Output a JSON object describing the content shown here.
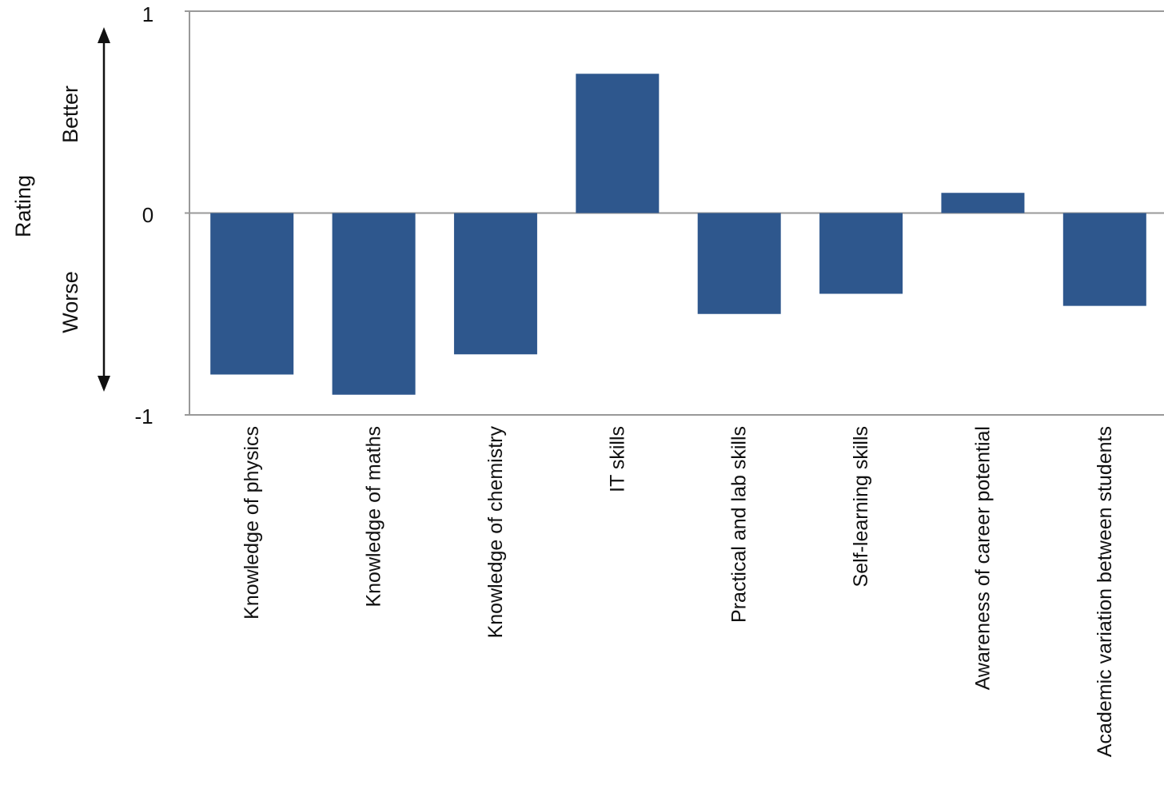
{
  "chart_data": {
    "type": "bar",
    "categories": [
      "Knowledge of physics",
      "Knowledge of maths",
      "Knowledge of chemistry",
      "IT skills",
      "Practical and lab skills",
      "Self-learning skills",
      "Awareness of career potential",
      "Academic variation between students"
    ],
    "values": [
      -0.8,
      -0.9,
      -0.7,
      0.69,
      -0.5,
      -0.4,
      0.1,
      -0.46
    ],
    "ylim": [
      -1,
      1
    ],
    "yticks": [
      "1",
      "0",
      "-1"
    ],
    "ylabel": "Rating",
    "better_label": "Better",
    "worse_label": "Worse",
    "grid": false,
    "colors": {
      "bar": "#2e578d",
      "axis": "#999999",
      "text": "#111111"
    }
  }
}
